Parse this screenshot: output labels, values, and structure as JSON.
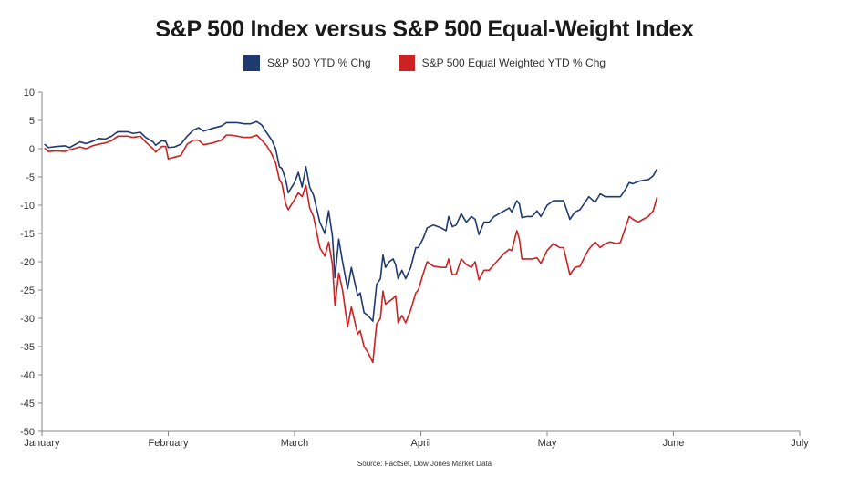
{
  "title": "S&P 500 Index versus S&P 500 Equal-Weight Index",
  "source": "Source: FactSet, Dow Jones Market Data",
  "colors": {
    "series1": "#1f3a6e",
    "series2": "#cc2222",
    "axis": "#888888"
  },
  "chart_data": {
    "type": "line",
    "title": "S&P 500 Index versus S&P 500 Equal-Weight Index",
    "ylim": [
      -50,
      10
    ],
    "yticks": [
      "10",
      "5",
      "0",
      "-5",
      "-10",
      "-15",
      "-20",
      "-25",
      "-30",
      "-35",
      "-40",
      "-45",
      "-50"
    ],
    "yticks_values": [
      10,
      5,
      0,
      -5,
      -10,
      -15,
      -20,
      -25,
      -30,
      -35,
      -40,
      -45,
      -50
    ],
    "xlim": [
      0,
      6
    ],
    "xticks": [
      "January",
      "February",
      "March",
      "April",
      "May",
      "June",
      "July"
    ],
    "xticks_values": [
      0,
      1,
      2,
      3,
      4,
      5,
      6
    ],
    "grid": false,
    "legend_position": "top-center",
    "series": [
      {
        "name": "S&P 500 YTD % Chg",
        "color": "#1f3a6e",
        "points": [
          [
            0.02,
            0.8
          ],
          [
            0.05,
            0.2
          ],
          [
            0.12,
            0.4
          ],
          [
            0.18,
            0.5
          ],
          [
            0.22,
            0.2
          ],
          [
            0.3,
            1.2
          ],
          [
            0.35,
            0.9
          ],
          [
            0.4,
            1.3
          ],
          [
            0.45,
            1.8
          ],
          [
            0.5,
            1.7
          ],
          [
            0.55,
            2.2
          ],
          [
            0.6,
            3.0
          ],
          [
            0.68,
            3.0
          ],
          [
            0.72,
            2.7
          ],
          [
            0.78,
            2.9
          ],
          [
            0.82,
            2.0
          ],
          [
            0.88,
            1.2
          ],
          [
            0.9,
            0.6
          ],
          [
            0.95,
            1.4
          ],
          [
            0.98,
            1.3
          ],
          [
            1.0,
            0.2
          ],
          [
            1.05,
            0.3
          ],
          [
            1.1,
            0.8
          ],
          [
            1.15,
            2.2
          ],
          [
            1.2,
            3.3
          ],
          [
            1.24,
            3.7
          ],
          [
            1.28,
            3.1
          ],
          [
            1.35,
            3.6
          ],
          [
            1.42,
            4.0
          ],
          [
            1.46,
            4.6
          ],
          [
            1.5,
            4.6
          ],
          [
            1.55,
            4.6
          ],
          [
            1.6,
            4.4
          ],
          [
            1.65,
            4.4
          ],
          [
            1.7,
            4.8
          ],
          [
            1.74,
            4.2
          ],
          [
            1.78,
            2.8
          ],
          [
            1.82,
            1.5
          ],
          [
            1.85,
            0.0
          ],
          [
            1.88,
            -3.2
          ],
          [
            1.9,
            -3.5
          ],
          [
            1.93,
            -5.5
          ],
          [
            1.95,
            -7.8
          ],
          [
            2.0,
            -6.0
          ],
          [
            2.03,
            -4.2
          ],
          [
            2.06,
            -6.8
          ],
          [
            2.09,
            -3.2
          ],
          [
            2.12,
            -6.8
          ],
          [
            2.15,
            -8.2
          ],
          [
            2.2,
            -13.0
          ],
          [
            2.24,
            -15.0
          ],
          [
            2.27,
            -11.0
          ],
          [
            2.3,
            -15.5
          ],
          [
            2.32,
            -22.8
          ],
          [
            2.35,
            -16.0
          ],
          [
            2.38,
            -20.0
          ],
          [
            2.42,
            -24.8
          ],
          [
            2.45,
            -21.0
          ],
          [
            2.5,
            -26.0
          ],
          [
            2.52,
            -25.5
          ],
          [
            2.55,
            -29.0
          ],
          [
            2.58,
            -29.5
          ],
          [
            2.62,
            -30.5
          ],
          [
            2.65,
            -24.0
          ],
          [
            2.68,
            -23.0
          ],
          [
            2.7,
            -18.8
          ],
          [
            2.72,
            -21.0
          ],
          [
            2.75,
            -20.0
          ],
          [
            2.78,
            -19.5
          ],
          [
            2.8,
            -20.5
          ],
          [
            2.82,
            -23.0
          ],
          [
            2.85,
            -21.5
          ],
          [
            2.88,
            -23.0
          ],
          [
            2.92,
            -21.0
          ],
          [
            2.96,
            -17.5
          ],
          [
            2.98,
            -17.5
          ],
          [
            3.02,
            -15.8
          ],
          [
            3.05,
            -14.0
          ],
          [
            3.1,
            -13.5
          ],
          [
            3.16,
            -14.0
          ],
          [
            3.2,
            -14.5
          ],
          [
            3.22,
            -12.0
          ],
          [
            3.25,
            -13.8
          ],
          [
            3.28,
            -13.5
          ],
          [
            3.32,
            -11.5
          ],
          [
            3.36,
            -13.0
          ],
          [
            3.4,
            -12.0
          ],
          [
            3.43,
            -12.5
          ],
          [
            3.46,
            -15.2
          ],
          [
            3.5,
            -13.0
          ],
          [
            3.54,
            -13.0
          ],
          [
            3.58,
            -12.0
          ],
          [
            3.62,
            -11.5
          ],
          [
            3.66,
            -11.0
          ],
          [
            3.7,
            -10.5
          ],
          [
            3.72,
            -11.2
          ],
          [
            3.76,
            -9.2
          ],
          [
            3.78,
            -9.8
          ],
          [
            3.8,
            -12.2
          ],
          [
            3.84,
            -12.0
          ],
          [
            3.88,
            -12.0
          ],
          [
            3.92,
            -11.0
          ],
          [
            3.95,
            -12.0
          ],
          [
            4.0,
            -10.0
          ],
          [
            4.05,
            -9.2
          ],
          [
            4.1,
            -9.2
          ],
          [
            4.13,
            -9.2
          ],
          [
            4.18,
            -12.5
          ],
          [
            4.22,
            -11.2
          ],
          [
            4.26,
            -10.8
          ],
          [
            4.3,
            -9.5
          ],
          [
            4.33,
            -8.5
          ],
          [
            4.38,
            -9.5
          ],
          [
            4.42,
            -8.0
          ],
          [
            4.46,
            -8.5
          ],
          [
            4.5,
            -8.5
          ],
          [
            4.55,
            -8.5
          ],
          [
            4.58,
            -8.5
          ],
          [
            4.62,
            -7.2
          ],
          [
            4.65,
            -6.0
          ],
          [
            4.68,
            -6.2
          ],
          [
            4.72,
            -5.8
          ],
          [
            4.76,
            -5.6
          ],
          [
            4.8,
            -5.5
          ],
          [
            4.84,
            -4.8
          ],
          [
            4.87,
            -3.6
          ]
        ]
      },
      {
        "name": "S&P 500 Equal Weighted YTD % Chg",
        "color": "#cc2222",
        "points": [
          [
            0.02,
            0.1
          ],
          [
            0.05,
            -0.5
          ],
          [
            0.12,
            -0.4
          ],
          [
            0.18,
            -0.5
          ],
          [
            0.22,
            -0.2
          ],
          [
            0.3,
            0.3
          ],
          [
            0.35,
            0.0
          ],
          [
            0.4,
            0.5
          ],
          [
            0.45,
            0.8
          ],
          [
            0.5,
            1.0
          ],
          [
            0.55,
            1.4
          ],
          [
            0.6,
            2.2
          ],
          [
            0.68,
            2.2
          ],
          [
            0.72,
            2.0
          ],
          [
            0.78,
            2.2
          ],
          [
            0.82,
            1.2
          ],
          [
            0.88,
            0.0
          ],
          [
            0.9,
            -0.6
          ],
          [
            0.95,
            0.4
          ],
          [
            0.98,
            0.4
          ],
          [
            1.0,
            -1.8
          ],
          [
            1.05,
            -1.5
          ],
          [
            1.1,
            -1.2
          ],
          [
            1.15,
            0.8
          ],
          [
            1.2,
            1.5
          ],
          [
            1.24,
            1.5
          ],
          [
            1.28,
            0.7
          ],
          [
            1.35,
            1.0
          ],
          [
            1.42,
            1.5
          ],
          [
            1.46,
            2.4
          ],
          [
            1.5,
            2.4
          ],
          [
            1.55,
            2.2
          ],
          [
            1.6,
            2.0
          ],
          [
            1.65,
            2.0
          ],
          [
            1.7,
            2.4
          ],
          [
            1.74,
            1.5
          ],
          [
            1.78,
            0.5
          ],
          [
            1.82,
            -1.0
          ],
          [
            1.85,
            -2.5
          ],
          [
            1.88,
            -5.5
          ],
          [
            1.9,
            -6.2
          ],
          [
            1.93,
            -9.8
          ],
          [
            1.95,
            -10.8
          ],
          [
            2.0,
            -9.0
          ],
          [
            2.03,
            -7.8
          ],
          [
            2.06,
            -8.5
          ],
          [
            2.09,
            -6.5
          ],
          [
            2.12,
            -10.5
          ],
          [
            2.15,
            -12.0
          ],
          [
            2.2,
            -17.5
          ],
          [
            2.24,
            -19.0
          ],
          [
            2.27,
            -16.5
          ],
          [
            2.3,
            -20.5
          ],
          [
            2.32,
            -27.8
          ],
          [
            2.35,
            -22.0
          ],
          [
            2.38,
            -25.0
          ],
          [
            2.42,
            -31.5
          ],
          [
            2.45,
            -28.0
          ],
          [
            2.5,
            -32.8
          ],
          [
            2.52,
            -32.2
          ],
          [
            2.55,
            -35.0
          ],
          [
            2.58,
            -36.0
          ],
          [
            2.62,
            -37.8
          ],
          [
            2.65,
            -31.0
          ],
          [
            2.68,
            -30.0
          ],
          [
            2.7,
            -25.2
          ],
          [
            2.72,
            -27.5
          ],
          [
            2.75,
            -27.0
          ],
          [
            2.78,
            -26.5
          ],
          [
            2.8,
            -26.0
          ],
          [
            2.82,
            -30.8
          ],
          [
            2.85,
            -29.5
          ],
          [
            2.88,
            -30.8
          ],
          [
            2.92,
            -28.5
          ],
          [
            2.96,
            -25.5
          ],
          [
            2.98,
            -25.0
          ],
          [
            3.02,
            -22.0
          ],
          [
            3.05,
            -20.0
          ],
          [
            3.1,
            -20.8
          ],
          [
            3.16,
            -21.0
          ],
          [
            3.2,
            -21.0
          ],
          [
            3.22,
            -19.5
          ],
          [
            3.25,
            -22.3
          ],
          [
            3.28,
            -22.2
          ],
          [
            3.32,
            -19.5
          ],
          [
            3.36,
            -20.5
          ],
          [
            3.4,
            -21.0
          ],
          [
            3.43,
            -20.0
          ],
          [
            3.46,
            -23.2
          ],
          [
            3.5,
            -21.5
          ],
          [
            3.54,
            -21.5
          ],
          [
            3.58,
            -20.5
          ],
          [
            3.62,
            -19.5
          ],
          [
            3.66,
            -18.5
          ],
          [
            3.7,
            -17.8
          ],
          [
            3.72,
            -18.0
          ],
          [
            3.76,
            -14.5
          ],
          [
            3.78,
            -16.0
          ],
          [
            3.8,
            -19.5
          ],
          [
            3.84,
            -19.5
          ],
          [
            3.88,
            -19.5
          ],
          [
            3.92,
            -19.3
          ],
          [
            3.95,
            -20.3
          ],
          [
            4.0,
            -18.0
          ],
          [
            4.05,
            -16.8
          ],
          [
            4.1,
            -17.5
          ],
          [
            4.13,
            -17.5
          ],
          [
            4.18,
            -22.3
          ],
          [
            4.22,
            -21.0
          ],
          [
            4.26,
            -20.8
          ],
          [
            4.3,
            -19.0
          ],
          [
            4.33,
            -17.8
          ],
          [
            4.38,
            -16.5
          ],
          [
            4.42,
            -17.5
          ],
          [
            4.46,
            -16.8
          ],
          [
            4.5,
            -16.5
          ],
          [
            4.55,
            -16.8
          ],
          [
            4.58,
            -16.6
          ],
          [
            4.62,
            -14.0
          ],
          [
            4.65,
            -12.0
          ],
          [
            4.68,
            -12.5
          ],
          [
            4.72,
            -13.0
          ],
          [
            4.76,
            -12.5
          ],
          [
            4.8,
            -12.0
          ],
          [
            4.84,
            -11.0
          ],
          [
            4.87,
            -8.6
          ]
        ]
      }
    ]
  }
}
